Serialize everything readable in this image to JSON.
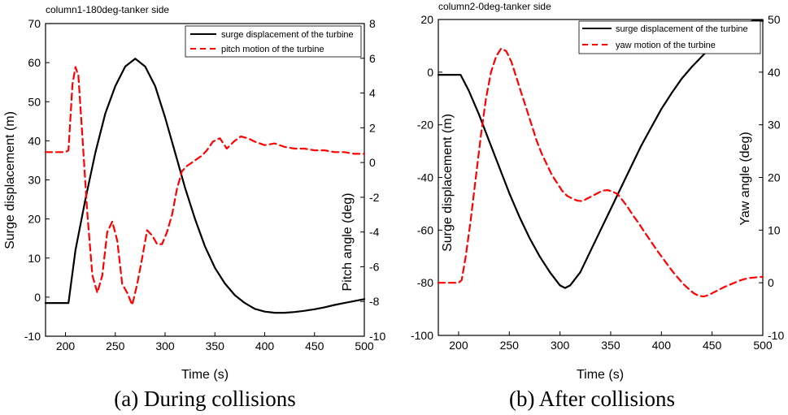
{
  "chart_data": [
    {
      "type": "line",
      "title": "column1-180deg-tanker side",
      "caption": "(a) During collisions",
      "xlabel": "Time (s)",
      "ylabel": "Surge displacement (m)",
      "y2label": "Pitch angle (deg)",
      "xlim": [
        180,
        500
      ],
      "ylim": [
        -10,
        70
      ],
      "y2lim": [
        -10,
        8
      ],
      "xticks": [
        200,
        250,
        300,
        350,
        400,
        450,
        500
      ],
      "yticks": [
        -10,
        0,
        10,
        20,
        30,
        40,
        50,
        60,
        70
      ],
      "y2ticks": [
        -10,
        -8,
        -6,
        -4,
        -2,
        0,
        2,
        4,
        6,
        8
      ],
      "legend_position": "top-right",
      "series": [
        {
          "name": "surge displacement of the turbine",
          "axis": "left",
          "color": "#000000",
          "style": "solid",
          "x": [
            180,
            200,
            203,
            210,
            220,
            230,
            240,
            250,
            260,
            270,
            280,
            290,
            300,
            310,
            320,
            330,
            340,
            350,
            360,
            370,
            380,
            390,
            400,
            410,
            420,
            430,
            440,
            450,
            460,
            470,
            480,
            490,
            500
          ],
          "y": [
            -1.5,
            -1.5,
            -1.5,
            12,
            25,
            37,
            47,
            54,
            59,
            61,
            59,
            54,
            46,
            37,
            28,
            20,
            13,
            7.5,
            3.5,
            0.5,
            -1.5,
            -3,
            -3.7,
            -4,
            -4,
            -3.8,
            -3.5,
            -3.1,
            -2.6,
            -2,
            -1.5,
            -1,
            -0.5
          ]
        },
        {
          "name": "pitch motion of the turbine",
          "axis": "right",
          "color": "#ff0000",
          "style": "dashed",
          "x": [
            180,
            200,
            203,
            207,
            210,
            213,
            217,
            222,
            227,
            232,
            237,
            242,
            247,
            252,
            257,
            262,
            267,
            272,
            277,
            282,
            287,
            292,
            297,
            302,
            307,
            312,
            317,
            322,
            327,
            332,
            337,
            342,
            348,
            355,
            362,
            369,
            376,
            383,
            390,
            400,
            410,
            420,
            430,
            440,
            450,
            460,
            470,
            480,
            490,
            500
          ],
          "y": [
            0.6,
            0.6,
            0.7,
            4.5,
            5.5,
            5.0,
            1.5,
            -3.0,
            -6.5,
            -7.5,
            -6.5,
            -4.0,
            -3.4,
            -4.5,
            -7.0,
            -7.5,
            -8.2,
            -7.0,
            -5.5,
            -3.9,
            -4.2,
            -4.7,
            -4.7,
            -4.0,
            -3.0,
            -1.5,
            -0.5,
            -0.2,
            0,
            0.2,
            0.4,
            0.7,
            1.2,
            1.4,
            0.8,
            1.2,
            1.5,
            1.4,
            1.2,
            1.0,
            1.1,
            0.9,
            0.8,
            0.8,
            0.7,
            0.7,
            0.6,
            0.6,
            0.5,
            0.5
          ]
        }
      ]
    },
    {
      "type": "line",
      "title": "column2-0deg-tanker side",
      "caption": "(b) After collisions",
      "xlabel": "Time (s)",
      "ylabel": "Surge displacement (m)",
      "y2label": "Yaw angle (deg)",
      "xlim": [
        180,
        500
      ],
      "ylim": [
        -100,
        20
      ],
      "y2lim": [
        -10,
        50
      ],
      "xticks": [
        200,
        250,
        300,
        350,
        400,
        450,
        500
      ],
      "yticks": [
        -100,
        -80,
        -60,
        -40,
        -20,
        0,
        20
      ],
      "y2ticks": [
        -10,
        0,
        10,
        20,
        30,
        40,
        50
      ],
      "legend_position": "top-right",
      "series": [
        {
          "name": "surge displacement of the turbine",
          "axis": "left",
          "color": "#000000",
          "style": "solid",
          "x": [
            180,
            200,
            202,
            210,
            220,
            230,
            240,
            250,
            260,
            270,
            280,
            290,
            300,
            305,
            310,
            320,
            330,
            340,
            350,
            360,
            370,
            380,
            390,
            400,
            410,
            420,
            430,
            440,
            450,
            460,
            470,
            480,
            490,
            500
          ],
          "y": [
            -1,
            -1,
            -1,
            -7,
            -16,
            -26,
            -36,
            -46,
            -55,
            -63,
            -70,
            -76,
            -81,
            -82,
            -81,
            -76,
            -68,
            -60,
            -52,
            -44,
            -36,
            -28,
            -21,
            -14,
            -8,
            -2.5,
            2,
            6,
            10,
            13,
            16,
            18,
            19.5,
            19.5
          ]
        },
        {
          "name": "yaw motion of the turbine",
          "axis": "right",
          "color": "#ff0000",
          "style": "dashed",
          "x": [
            180,
            200,
            203,
            207,
            212,
            217,
            222,
            227,
            232,
            237,
            242,
            247,
            252,
            257,
            262,
            267,
            272,
            277,
            282,
            287,
            292,
            297,
            302,
            307,
            312,
            317,
            322,
            327,
            332,
            337,
            342,
            347,
            352,
            357,
            362,
            367,
            372,
            377,
            382,
            387,
            392,
            397,
            402,
            407,
            412,
            417,
            422,
            427,
            432,
            437,
            442,
            447,
            452,
            457,
            462,
            467,
            472,
            477,
            482,
            487,
            492,
            497,
            500
          ],
          "y": [
            0,
            0,
            0.5,
            5,
            12,
            20,
            28,
            35,
            40,
            43,
            44.5,
            44,
            42,
            39,
            36,
            33,
            30,
            27,
            24.5,
            22.5,
            20.5,
            19,
            17.5,
            16.5,
            16,
            15.6,
            15.5,
            16,
            16.5,
            17,
            17.5,
            17.6,
            17.3,
            16.8,
            15.6,
            14.3,
            12.8,
            11.5,
            10,
            8.6,
            7.2,
            5.8,
            4.5,
            3.2,
            1.9,
            0.8,
            -0.3,
            -1.2,
            -2,
            -2.5,
            -2.6,
            -2.3,
            -1.8,
            -1.3,
            -0.8,
            -0.4,
            0,
            0.4,
            0.7,
            0.9,
            1.0,
            1.1,
            1.1
          ]
        }
      ]
    }
  ]
}
